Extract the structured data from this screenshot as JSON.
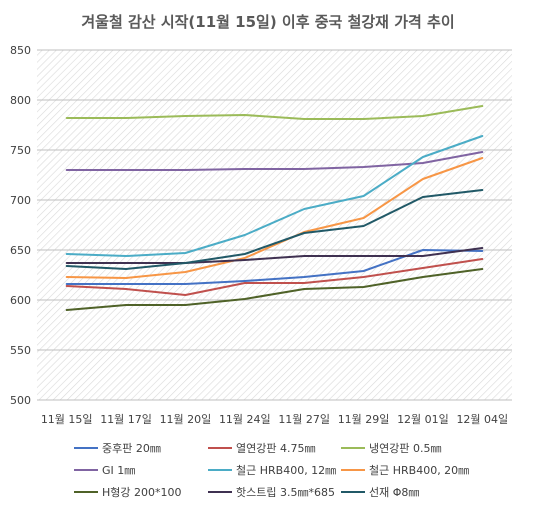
{
  "chart_data": {
    "type": "line",
    "title": "겨울철 감산 시작(11월 15일) 이후 중국 철강재 가격 추이",
    "categories": [
      "11월 15일",
      "11월 17일",
      "11월 20일",
      "11월 24일",
      "11월 27일",
      "11월 29일",
      "12월 01일",
      "12월 04일"
    ],
    "ylim": [
      500,
      850
    ],
    "yticks": [
      500,
      550,
      600,
      650,
      700,
      750,
      800,
      850
    ],
    "grid": true,
    "legend_position": "bottom",
    "series": [
      {
        "name": "중후판 20㎜",
        "color": "#4472C4",
        "values": [
          616,
          616,
          616,
          619,
          623,
          629,
          650,
          649
        ]
      },
      {
        "name": "열연강판 4.75㎜",
        "color": "#C0504D",
        "values": [
          614,
          611,
          605,
          617,
          617,
          623,
          632,
          641
        ]
      },
      {
        "name": "냉연강판 0.5㎜",
        "color": "#9BBB59",
        "values": [
          782,
          782,
          784,
          785,
          781,
          781,
          784,
          794
        ]
      },
      {
        "name": "GI 1㎜",
        "color": "#8064A2",
        "values": [
          730,
          730,
          730,
          731,
          731,
          733,
          737,
          748
        ]
      },
      {
        "name": "철근 HRB400, 12㎜",
        "color": "#4BACC6",
        "values": [
          646,
          644,
          647,
          665,
          691,
          704,
          743,
          764
        ]
      },
      {
        "name": "철근 HRB400, 20㎜",
        "color": "#F79646",
        "values": [
          623,
          622,
          628,
          642,
          668,
          682,
          721,
          742
        ]
      },
      {
        "name": "H형강 200*100",
        "color": "#4F6228",
        "values": [
          590,
          595,
          595,
          601,
          611,
          613,
          623,
          631
        ]
      },
      {
        "name": "핫스트립 3.5㎜*685",
        "color": "#3F3151",
        "values": [
          637,
          637,
          637,
          640,
          644,
          644,
          644,
          652
        ]
      },
      {
        "name": "선재 Φ8㎜",
        "color": "#215967",
        "values": [
          634,
          631,
          637,
          646,
          667,
          674,
          703,
          710
        ]
      }
    ]
  }
}
